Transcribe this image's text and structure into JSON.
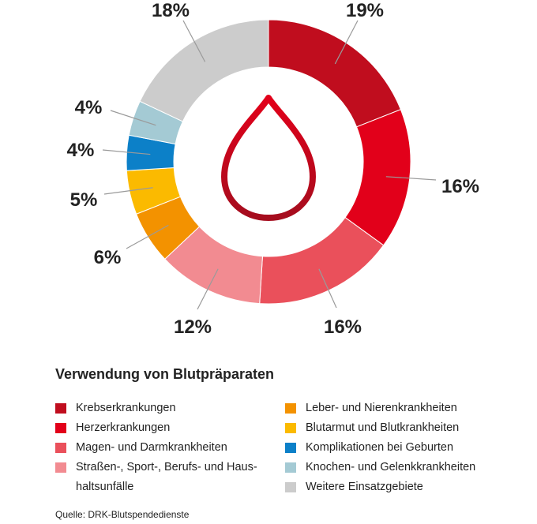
{
  "chart_data": {
    "type": "pie",
    "title": "Verwendung von Blutpräparaten",
    "categories": [
      "Krebserkrankungen",
      "Herzerkrankungen",
      "Magen- und Darmkrankheiten",
      "Straßen-, Sport-, Berufs- und Haushaltsunfälle",
      "Leber- und Nierenkrankheiten",
      "Blutarmut und Blutkrankheiten",
      "Komplikationen bei Geburten",
      "Knochen- und Gelenkkrankheiten",
      "Weitere Einsatzgebiete"
    ],
    "values": [
      19,
      16,
      16,
      12,
      6,
      5,
      4,
      4,
      18
    ],
    "value_labels": [
      "19%",
      "16%",
      "16%",
      "12%",
      "6%",
      "5%",
      "4%",
      "4%",
      "18%"
    ],
    "colors": [
      "#c00d1e",
      "#e2001a",
      "#ea505b",
      "#f28b91",
      "#f39200",
      "#fbba00",
      "#0c80c8",
      "#a4cad4",
      "#cccccc"
    ],
    "donut": true,
    "center_icon": "blood-drop-icon",
    "legend_placement": "bottom"
  },
  "legend": {
    "title": "Verwendung von Blutpräparaten",
    "col1": [
      {
        "label": "Krebserkrankungen",
        "color": "#c00d1e"
      },
      {
        "label": "Herzerkrankungen",
        "color": "#e2001a"
      },
      {
        "label": "Magen- und Darmkrankheiten",
        "color": "#ea505b"
      },
      {
        "label": "Straßen-, Sport-, Berufs- und Haus-haltsunfälle",
        "color": "#f28b91"
      }
    ],
    "col2": [
      {
        "label": "Leber- und Nierenkrankheiten",
        "color": "#f39200"
      },
      {
        "label": "Blutarmut und Blutkrankheiten",
        "color": "#fbba00"
      },
      {
        "label": "Komplikationen bei Geburten",
        "color": "#0c80c8"
      },
      {
        "label": "Knochen- und Gelenkkrankheiten",
        "color": "#a4cad4"
      },
      {
        "label": "Weitere Einsatzgebiete",
        "color": "#cccccc"
      }
    ]
  },
  "source": "Quelle: DRK-Blutspendedienste"
}
